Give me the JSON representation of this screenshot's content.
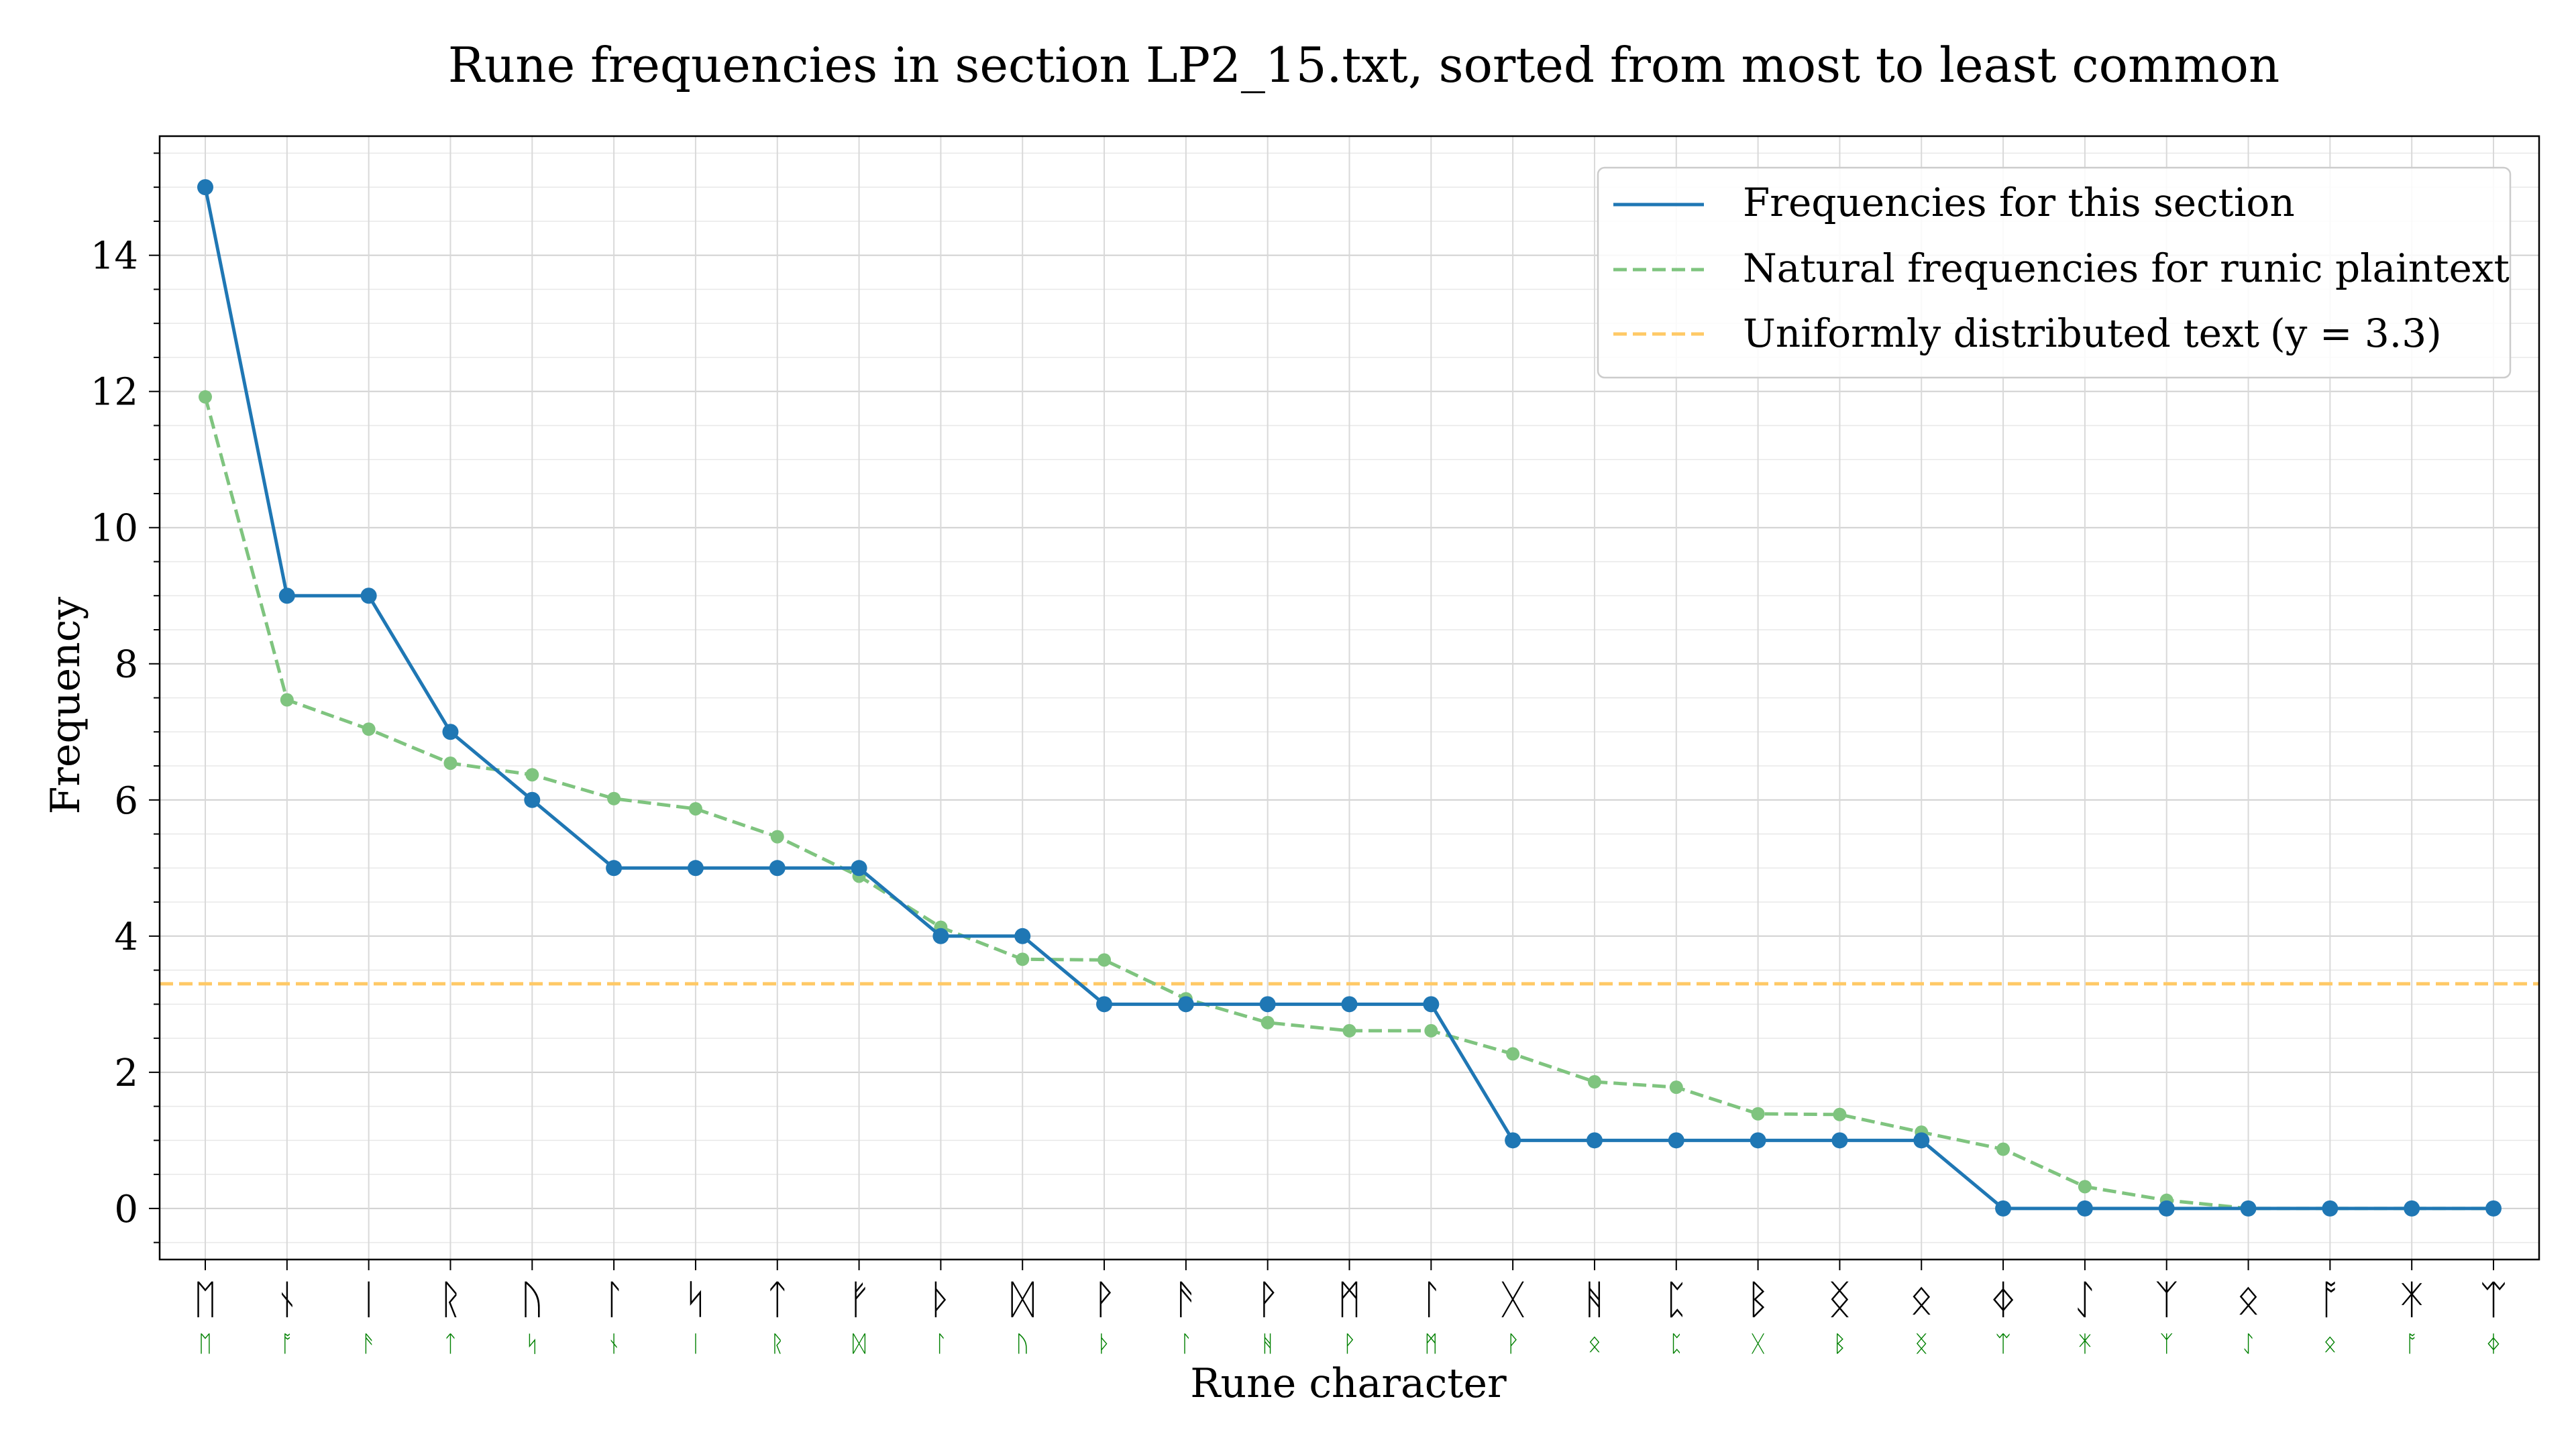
{
  "chart_data": {
    "type": "line",
    "title": "Rune frequencies in section LP2_15.txt, sorted from most to least common",
    "xlabel": "Rune character",
    "ylabel": "Frequency",
    "ylim": [
      -0.75,
      15.75
    ],
    "yticks": [
      0,
      2,
      4,
      6,
      8,
      10,
      12,
      14
    ],
    "grid": true,
    "legend_position": "top-right",
    "categories": [
      "ᛖ",
      "ᚾ",
      "ᛁ",
      "ᚱ",
      "ᚢ",
      "ᛚ",
      "ᛋ",
      "ᛏ",
      "ᚠ",
      "ᚦ",
      "ᛞ",
      "ᚹ",
      "ᚫ",
      "ᚹ",
      "ᛗ",
      "ᛚ",
      "ᚷ",
      "ᚻ",
      "ᛈ",
      "ᛒ",
      "ᛝ",
      "ᛟ",
      "ᛄ",
      "ᛇ",
      "ᛉ",
      "ᛟ",
      "ᚩ",
      "ᛡ",
      "ᛠ"
    ],
    "secondary_labels": [
      "ᛖ",
      "ᚩ",
      "ᚫ",
      "ᛏ",
      "ᛋ",
      "ᚾ",
      "ᛁ",
      "ᚱ",
      "ᛞ",
      "ᛚ",
      "ᚢ",
      "ᚦ",
      "ᛚ",
      "ᚻ",
      "ᚹ",
      "ᛗ",
      "ᚹ",
      "ᛟ",
      "ᛈ",
      "ᚷ",
      "ᛒ",
      "ᛝ",
      "ᛠ",
      "ᛡ",
      "ᛉ",
      "ᛇ",
      "ᛟ",
      "ᚩ",
      "ᛄ"
    ],
    "series": [
      {
        "name": "Frequencies for this section",
        "color": "#1f77b4",
        "style": "solid",
        "values": [
          15,
          9,
          9,
          7,
          6,
          5,
          5,
          5,
          5,
          4,
          4,
          3,
          3,
          3,
          3,
          3,
          1,
          1,
          1,
          1,
          1,
          1,
          0,
          0,
          0,
          0,
          0,
          0,
          0
        ]
      },
      {
        "name": "Natural frequencies for runic plaintext",
        "color": "#7fc47f",
        "style": "dashed",
        "values": [
          11.92,
          7.47,
          7.04,
          6.54,
          6.37,
          6.02,
          5.87,
          5.46,
          4.88,
          4.13,
          3.66,
          3.65,
          3.08,
          2.73,
          2.61,
          2.61,
          2.27,
          1.86,
          1.78,
          1.39,
          1.38,
          1.12,
          0.87,
          0.32,
          0.12,
          0.0,
          0.0,
          0.0,
          0.0
        ]
      }
    ],
    "reference_line": {
      "name": "Uniformly distributed text",
      "label_suffix": "(y = 3.3)",
      "value": 3.3,
      "color": "#ffc966",
      "style": "dashed"
    },
    "secondary_label_color": "#008000"
  }
}
